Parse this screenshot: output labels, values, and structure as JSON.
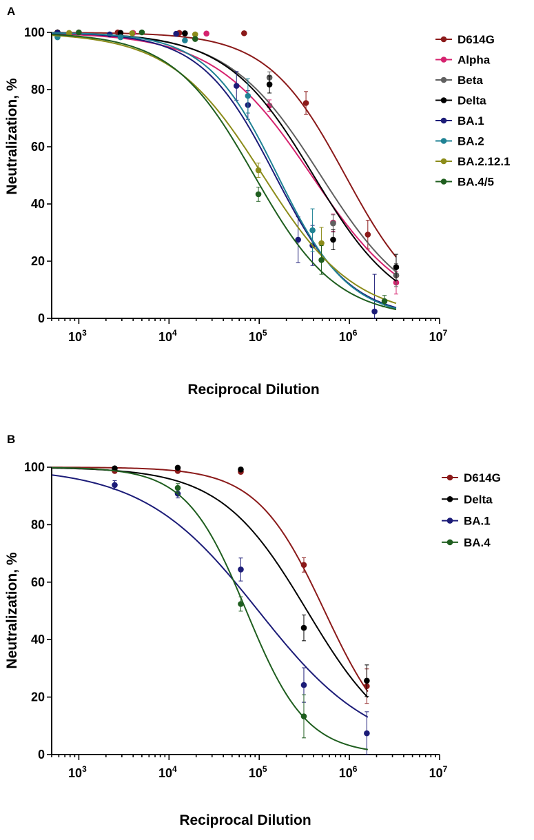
{
  "chart_data": [
    {
      "panel_label": "A",
      "type": "line",
      "xscale": "log",
      "xlabel": "Reciprocal Dilution",
      "ylabel": "Neutralization, %",
      "xlim": [
        500,
        10000000
      ],
      "ylim": [
        0,
        100
      ],
      "yticks": [
        0,
        20,
        40,
        60,
        80,
        100
      ],
      "xticks": [
        {
          "base": "10",
          "exp": "3",
          "value": 1000
        },
        {
          "base": "10",
          "exp": "4",
          "value": 10000
        },
        {
          "base": "10",
          "exp": "5",
          "value": 100000
        },
        {
          "base": "10",
          "exp": "6",
          "value": 1000000
        },
        {
          "base": "10",
          "exp": "7",
          "value": 10000000
        }
      ],
      "legend_position": "top-right",
      "series": [
        {
          "name": "D614G",
          "color": "#8b1a1a",
          "ic50": 900000,
          "hill": 1.0,
          "points": [
            [
              580,
              100,
              0
            ],
            [
              2700,
              100,
              0
            ],
            [
              13000,
              99.8,
              0
            ],
            [
              68000,
              99.7,
              0
            ],
            [
              330000,
              75.3,
              4
            ],
            [
              1600000,
              29.3,
              5
            ],
            [
              3300000,
              15,
              3
            ]
          ]
        },
        {
          "name": "Alpha",
          "color": "#d6236f",
          "ic50": 380000,
          "hill": 0.8,
          "points": [
            [
              1000,
              100,
              0
            ],
            [
              4000,
              99.8,
              0
            ],
            [
              26000,
              99.6,
              0
            ],
            [
              130000,
              74.4,
              2
            ],
            [
              660000,
              33.5,
              3
            ],
            [
              3300000,
              12.5,
              4
            ]
          ]
        },
        {
          "name": "Beta",
          "color": "#606060",
          "ic50": 480000,
          "hill": 0.85,
          "points": [
            [
              2900,
              99.8,
              0
            ],
            [
              15000,
              99.6,
              0
            ],
            [
              130000,
              84.2,
              2
            ],
            [
              660000,
              33.2,
              3
            ],
            [
              3300000,
              15.1,
              4
            ]
          ]
        },
        {
          "name": "Delta",
          "color": "#000000",
          "ic50": 400000,
          "hill": 0.9,
          "points": [
            [
              580,
              100,
              0
            ],
            [
              2900,
              99.8,
              0
            ],
            [
              15000,
              99.7,
              0
            ],
            [
              130000,
              81.8,
              3
            ],
            [
              660000,
              27.5,
              3.5
            ],
            [
              3300000,
              17.9,
              4.5
            ]
          ]
        },
        {
          "name": "BA.1",
          "color": "#1c1c78",
          "ic50": 150000,
          "hill": 1.05,
          "points": [
            [
              580,
              99.8,
              0
            ],
            [
              2200,
              99.3,
              0
            ],
            [
              12000,
              99.5,
              0
            ],
            [
              56000,
              81.3,
              5
            ],
            [
              75000,
              74.6,
              5
            ],
            [
              270000,
              27.5,
              8
            ],
            [
              390000,
              25.5,
              7
            ],
            [
              1900000,
              2.4,
              13
            ]
          ]
        },
        {
          "name": "BA.2",
          "color": "#1f8294",
          "ic50": 160000,
          "hill": 1.1,
          "points": [
            [
              580,
              98.3,
              0
            ],
            [
              2900,
              98.3,
              0
            ],
            [
              15000,
              97.2,
              0
            ],
            [
              75000,
              77.8,
              6
            ],
            [
              390000,
              30.8,
              7.5
            ]
          ]
        },
        {
          "name": "BA.2.12.1",
          "color": "#8c8c1a",
          "ic50": 110000,
          "hill": 0.85,
          "points": [
            [
              780,
              99.8,
              0
            ],
            [
              3900,
              99.7,
              0
            ],
            [
              19500,
              99.3,
              0
            ],
            [
              98000,
              51.8,
              2.5
            ],
            [
              490000,
              26.3,
              5.5
            ]
          ]
        },
        {
          "name": "BA.4/5",
          "color": "#1f5e1f",
          "ic50": 88000,
          "hill": 0.95,
          "points": [
            [
              1000,
              100,
              0
            ],
            [
              5000,
              100,
              0
            ],
            [
              19500,
              97.7,
              0
            ],
            [
              98000,
              43.4,
              2.5
            ],
            [
              490000,
              20.4,
              5
            ],
            [
              2450000,
              6,
              2
            ]
          ]
        }
      ]
    },
    {
      "panel_label": "B",
      "type": "line",
      "xscale": "log",
      "xlabel": "Reciprocal Dilution",
      "ylabel": "Neutralization, %",
      "xlim": [
        500,
        10000000
      ],
      "ylim": [
        0,
        100
      ],
      "yticks": [
        0,
        20,
        40,
        60,
        80,
        100
      ],
      "xticks": [
        {
          "base": "10",
          "exp": "3",
          "value": 1000
        },
        {
          "base": "10",
          "exp": "4",
          "value": 10000
        },
        {
          "base": "10",
          "exp": "5",
          "value": 100000
        },
        {
          "base": "10",
          "exp": "6",
          "value": 1000000
        },
        {
          "base": "10",
          "exp": "7",
          "value": 10000000
        }
      ],
      "legend_position": "top-right",
      "series": [
        {
          "name": "D614G",
          "color": "#8b1a1a",
          "ic50": 530000,
          "hill": 1.15,
          "points": [
            [
              2500,
              98.7,
              0
            ],
            [
              12500,
              98.7,
              0
            ],
            [
              62500,
              98.4,
              0
            ],
            [
              312500,
              66,
              2.5
            ],
            [
              1560000,
              23.8,
              6
            ]
          ]
        },
        {
          "name": "Delta",
          "color": "#000000",
          "ic50": 340000,
          "hill": 0.9,
          "points": [
            [
              2500,
              99.6,
              0
            ],
            [
              12500,
              99.8,
              0
            ],
            [
              62500,
              99.2,
              0
            ],
            [
              312500,
              44.1,
              4.5
            ],
            [
              1560000,
              25.7,
              5.5
            ]
          ]
        },
        {
          "name": "BA.1",
          "color": "#1c1c78",
          "ic50": 98000,
          "hill": 0.68,
          "points": [
            [
              2500,
              93.8,
              1.5
            ],
            [
              12500,
              90.8,
              1.5
            ],
            [
              62500,
              64.4,
              4
            ],
            [
              312500,
              24.2,
              6
            ],
            [
              1560000,
              7.4,
              7.5
            ]
          ]
        },
        {
          "name": "BA.4",
          "color": "#1f5e1f",
          "ic50": 72000,
          "hill": 1.3,
          "points": [
            [
              12500,
              92.8,
              1.5
            ],
            [
              62500,
              52.4,
              2.5
            ],
            [
              312500,
              13.3,
              7.5
            ]
          ]
        }
      ]
    }
  ]
}
